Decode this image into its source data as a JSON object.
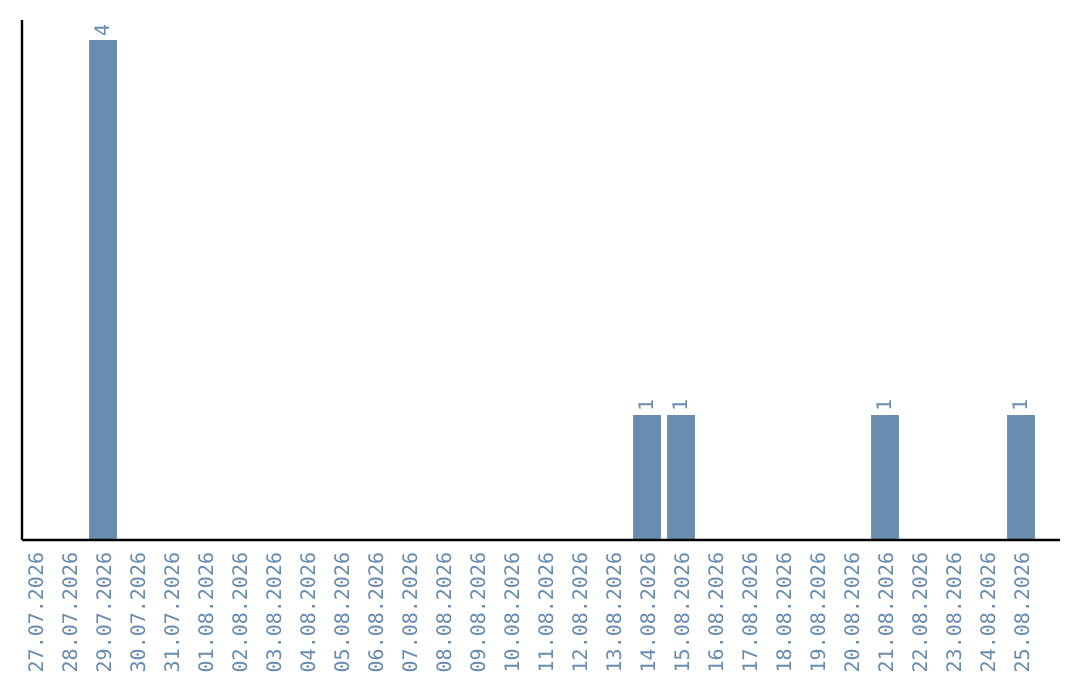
{
  "chart_data": {
    "type": "bar",
    "categories": [
      "27.07.2026",
      "28.07.2026",
      "29.07.2026",
      "30.07.2026",
      "31.07.2026",
      "01.08.2026",
      "02.08.2026",
      "03.08.2026",
      "04.08.2026",
      "05.08.2026",
      "06.08.2026",
      "07.08.2026",
      "08.08.2026",
      "09.08.2026",
      "10.08.2026",
      "11.08.2026",
      "12.08.2026",
      "13.08.2026",
      "14.08.2026",
      "15.08.2026",
      "16.08.2026",
      "17.08.2026",
      "18.08.2026",
      "19.08.2026",
      "20.08.2026",
      "21.08.2026",
      "22.08.2026",
      "23.08.2026",
      "24.08.2026",
      "25.08.2026"
    ],
    "values": [
      0,
      0,
      4,
      0,
      0,
      0,
      0,
      0,
      0,
      0,
      0,
      0,
      0,
      0,
      0,
      0,
      0,
      0,
      1,
      1,
      0,
      0,
      0,
      0,
      0,
      1,
      0,
      0,
      0,
      1
    ],
    "value_labels": [
      null,
      null,
      "4",
      null,
      null,
      null,
      null,
      null,
      null,
      null,
      null,
      null,
      null,
      null,
      null,
      null,
      null,
      null,
      "1",
      "1",
      null,
      null,
      null,
      null,
      null,
      "1",
      null,
      null,
      null,
      "1"
    ],
    "color": "#6a8caf"
  }
}
